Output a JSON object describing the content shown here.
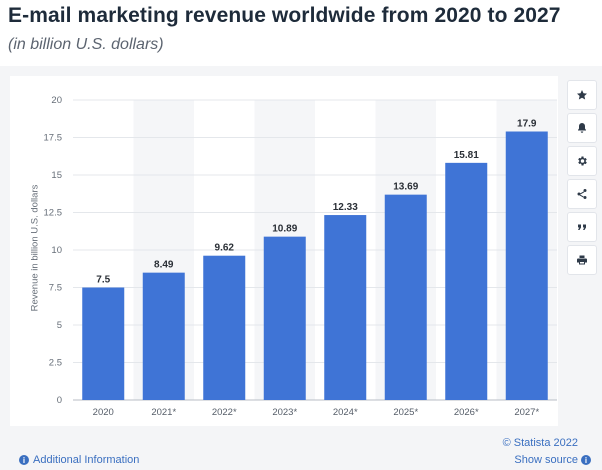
{
  "header": {
    "title": "E-mail marketing revenue worldwide from 2020 to 2027",
    "subtitle": "(in billion U.S. dollars)"
  },
  "chart_data": {
    "type": "bar",
    "categories": [
      "2020",
      "2021*",
      "2022*",
      "2023*",
      "2024*",
      "2025*",
      "2026*",
      "2027*"
    ],
    "values": [
      7.5,
      8.49,
      9.62,
      10.89,
      12.33,
      13.69,
      15.81,
      17.9
    ],
    "value_labels": [
      "7.5",
      "8.49",
      "9.62",
      "10.89",
      "12.33",
      "13.69",
      "15.81",
      "17.9"
    ],
    "ylabel": "Revenue in billion U.S. dollars",
    "xlabel": "",
    "ylim": [
      0,
      20
    ],
    "yticks": [
      0,
      2.5,
      5,
      7.5,
      10,
      12.5,
      15,
      17.5,
      20
    ],
    "ytick_labels": [
      "0",
      "2.5",
      "5",
      "7.5",
      "10",
      "12.5",
      "15",
      "17.5",
      "20"
    ],
    "bar_color": "#3f74d6",
    "grid": true,
    "legend": "none"
  },
  "sidebar": {
    "buttons": [
      {
        "name": "star-icon",
        "action": "favorite"
      },
      {
        "name": "bell-icon",
        "action": "notify"
      },
      {
        "name": "gear-icon",
        "action": "settings"
      },
      {
        "name": "share-icon",
        "action": "share"
      },
      {
        "name": "quote-icon",
        "action": "cite"
      },
      {
        "name": "print-icon",
        "action": "print"
      }
    ]
  },
  "footer": {
    "copyright": "© Statista 2022",
    "show_source": "Show source",
    "additional_info": "Additional Information"
  },
  "colors": {
    "accent": "#3a6fc0",
    "title": "#1e2b3a"
  }
}
